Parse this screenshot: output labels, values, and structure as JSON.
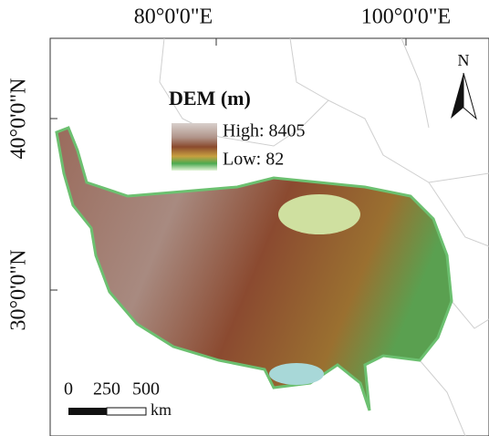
{
  "axes": {
    "top": [
      "80°0'0\"E",
      "100°0'0\"E"
    ],
    "left": [
      "40°0'0\"N",
      "30°0'0\"N"
    ]
  },
  "legend": {
    "title": "DEM (m)",
    "high": "High: 8405",
    "low": "Low: 82"
  },
  "north": "N",
  "scale_bar": {
    "labels": [
      "0",
      "250",
      "500"
    ],
    "unit": "km"
  }
}
